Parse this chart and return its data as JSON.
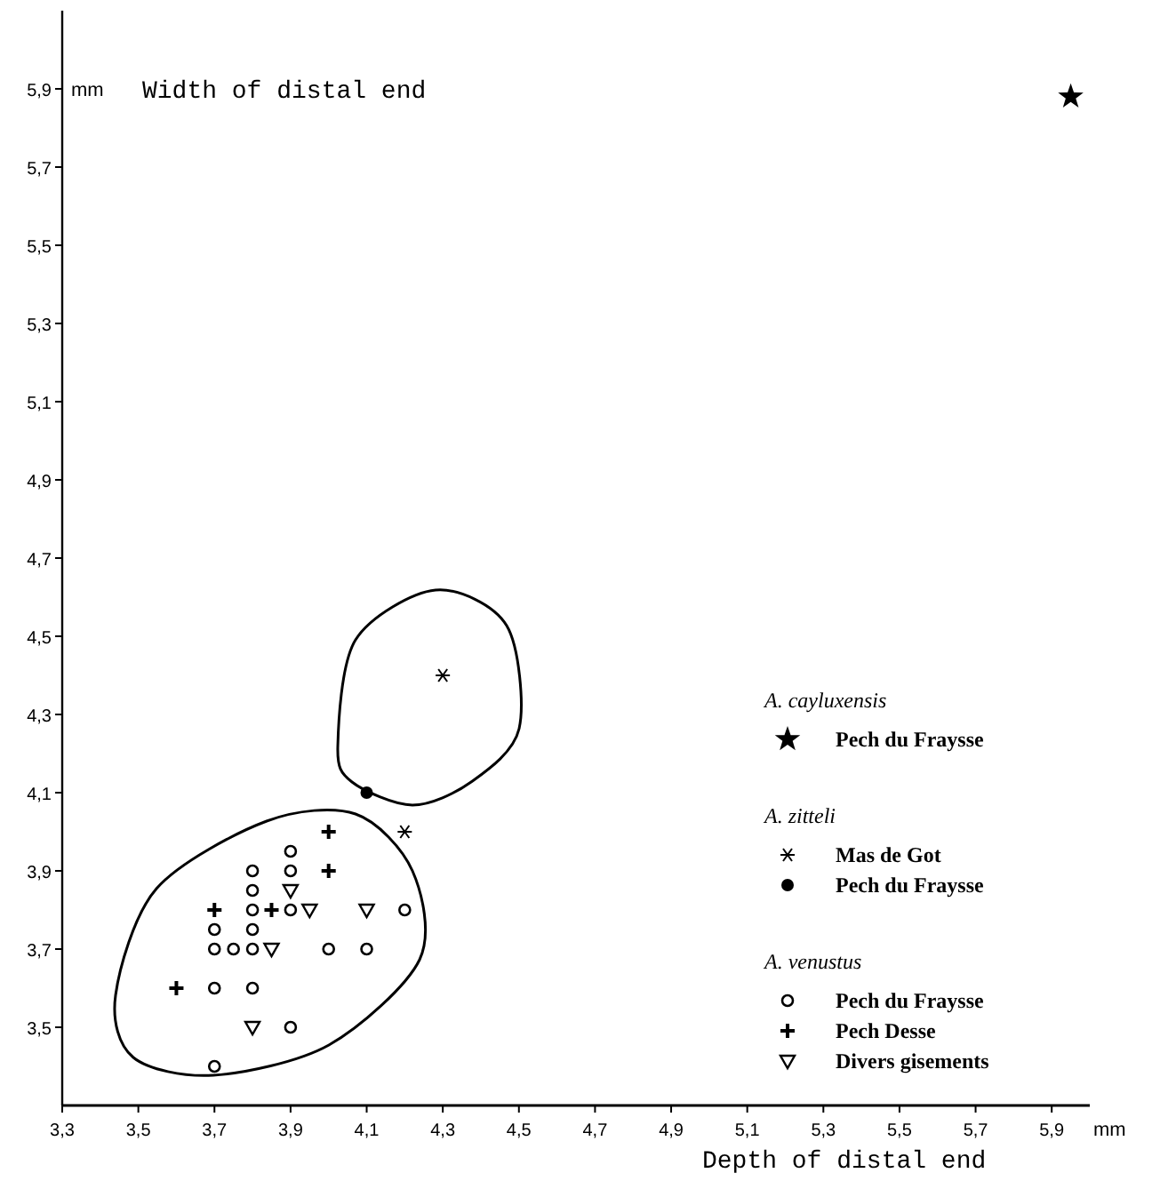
{
  "chart_data": {
    "type": "scatter",
    "xlabel": "Depth of distal end",
    "ylabel": "Width of distal end",
    "annotations": [
      "mm",
      "mm",
      "A. cayluxensis",
      "A. zitteli",
      "A. venustus"
    ],
    "xlim": [
      3.3,
      6.0
    ],
    "ylim": [
      3.3,
      6.1
    ],
    "xticks": [
      {
        "value": 3.3,
        "label": "3,3"
      },
      {
        "value": 3.5,
        "label": "3,5"
      },
      {
        "value": 3.7,
        "label": "3,7"
      },
      {
        "value": 3.9,
        "label": "3,9"
      },
      {
        "value": 4.1,
        "label": "4,1"
      },
      {
        "value": 4.3,
        "label": "4,3"
      },
      {
        "value": 4.5,
        "label": "4,5"
      },
      {
        "value": 4.7,
        "label": "4,7"
      },
      {
        "value": 4.9,
        "label": "4,9"
      },
      {
        "value": 5.1,
        "label": "5,1"
      },
      {
        "value": 5.3,
        "label": "5,3"
      },
      {
        "value": 5.5,
        "label": "5,5"
      },
      {
        "value": 5.7,
        "label": "5,7"
      },
      {
        "value": 5.9,
        "label": "5,9"
      }
    ],
    "yticks": [
      {
        "value": 3.5,
        "label": "3,5"
      },
      {
        "value": 3.7,
        "label": "3,7"
      },
      {
        "value": 3.9,
        "label": "3,9"
      },
      {
        "value": 4.1,
        "label": "4,1"
      },
      {
        "value": 4.3,
        "label": "4,3"
      },
      {
        "value": 4.5,
        "label": "4,5"
      },
      {
        "value": 4.7,
        "label": "4,7"
      },
      {
        "value": 4.9,
        "label": "4,9"
      },
      {
        "value": 5.1,
        "label": "5,1"
      },
      {
        "value": 5.3,
        "label": "5,3"
      },
      {
        "value": 5.5,
        "label": "5,5"
      },
      {
        "value": 5.7,
        "label": "5,7"
      },
      {
        "value": 5.9,
        "label": "5,9"
      }
    ],
    "grid": false,
    "legend": "bottom right",
    "series": [
      {
        "name": "Pech du Fraysse",
        "color": "#000000",
        "marker": "star",
        "x": [
          5.95
        ],
        "values": [
          5.88
        ]
      },
      {
        "name": "Mas de Got",
        "color": "#000000",
        "marker": "cross",
        "x": [
          4.3,
          4.2
        ],
        "values": [
          4.4,
          4.0
        ]
      },
      {
        "name": "Pech du Fraysse",
        "color": "#000000",
        "marker": "dot",
        "x": [
          4.1
        ],
        "values": [
          4.1
        ]
      },
      {
        "name": "Pech du Fraysse",
        "color": "#000000",
        "marker": "circle",
        "x": [
          3.9,
          3.8,
          3.9,
          3.8,
          3.8,
          3.9,
          4.2,
          3.7,
          3.8,
          3.7,
          3.75,
          3.8,
          4.0,
          4.1,
          3.7,
          3.8,
          3.9,
          3.7
        ],
        "values": [
          3.95,
          3.9,
          3.9,
          3.85,
          3.8,
          3.8,
          3.8,
          3.75,
          3.75,
          3.7,
          3.7,
          3.7,
          3.7,
          3.7,
          3.6,
          3.6,
          3.5,
          3.4
        ]
      },
      {
        "name": "Pech Desse",
        "color": "#000000",
        "marker": "plus",
        "x": [
          4.0,
          4.0,
          3.7,
          3.85,
          3.6
        ],
        "values": [
          4.0,
          3.9,
          3.8,
          3.8,
          3.6
        ]
      },
      {
        "name": "Divers gisements",
        "color": "#000000",
        "marker": "triangle",
        "x": [
          3.9,
          3.95,
          4.1,
          3.85,
          3.8
        ],
        "values": [
          3.85,
          3.8,
          3.8,
          3.7,
          3.5
        ]
      }
    ]
  }
}
